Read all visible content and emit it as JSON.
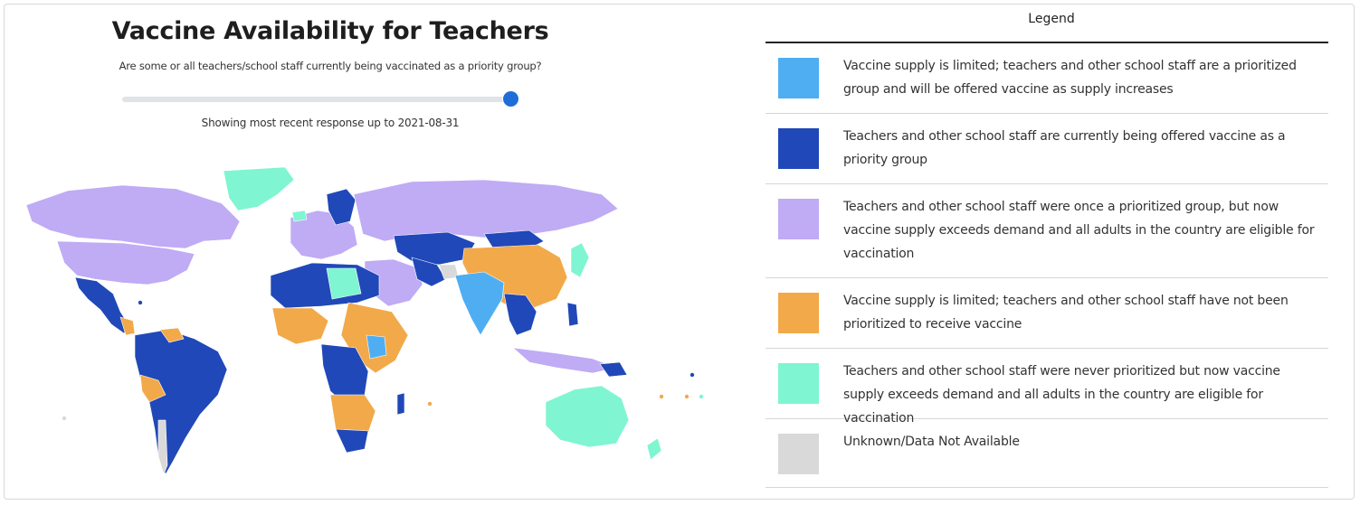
{
  "title": "Vaccine Availability for Teachers",
  "subtitle": "Are some or all teachers/school staff currently being vaccinated as a priority group?",
  "showing_text": "Showing most recent response up to 2021-08-31",
  "slider": {
    "value_fraction": 1.0
  },
  "legend": {
    "title": "Legend",
    "items": [
      {
        "label": "Vaccine supply is limited; teachers and other school staff are a prioritized group and will be offered vaccine as supply increases",
        "color": "#4faef2"
      },
      {
        "label": "Teachers and other school staff are currently being offered vaccine as a priority group",
        "color": "#2048b8"
      },
      {
        "label": "Teachers and other school staff were once a prioritized group, but now vaccine supply exceeds demand and all adults in the country are eligible for vaccination",
        "color": "#c0abf5"
      },
      {
        "label": "Vaccine supply is limited; teachers and other school staff have not been prioritized to receive vaccine",
        "color": "#f2a94a"
      },
      {
        "label": "Teachers and other school staff were never prioritized but now vaccine supply exceeds demand and all adults in the country are eligible for vaccination",
        "color": "#7ff5d2"
      },
      {
        "label": "Unknown/Data Not Available",
        "color": "#d9d9d9"
      }
    ]
  },
  "colors": {
    "limited_prioritized": "#4faef2",
    "currently_offered": "#2048b8",
    "once_prioritized": "#c0abf5",
    "limited_not_prioritized": "#f2a94a",
    "never_prioritized": "#7ff5d2",
    "unknown": "#d9d9d9"
  }
}
